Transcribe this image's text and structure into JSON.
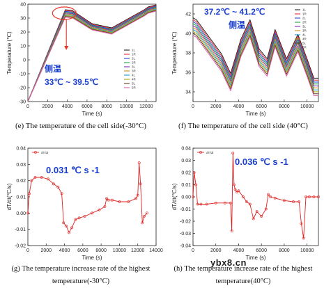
{
  "chart_data": [
    {
      "id": "e",
      "type": "line",
      "caption": "(e) The temperature of the cell side(-30°C)",
      "xlabel": "Time (s)",
      "ylabel": "Temperature (℃)",
      "xlim": [
        0,
        13000
      ],
      "ylim": [
        -30,
        40
      ],
      "xticks": [
        0,
        2000,
        4000,
        6000,
        8000,
        10000,
        12000
      ],
      "yticks": [
        -30,
        -20,
        -10,
        0,
        10,
        20,
        30,
        40
      ],
      "legend": [
        "1L",
        "1R",
        "2L",
        "2R",
        "3L",
        "3R",
        "4L",
        "4R",
        "5L",
        "5R"
      ],
      "legend_position": "right",
      "annotation_line1": "侧温",
      "annotation_line2": "33℃ ~ 39.5℃",
      "annotation_color": "#1a3fd1",
      "highlight_color": "#e8352a",
      "colors": [
        "#202020",
        "#e83030",
        "#2a3fd1",
        "#1aa04a",
        "#7a2ab0",
        "#d08a1a",
        "#1a9ad0",
        "#b0a010",
        "#604020",
        "#e060b0"
      ],
      "series": [
        {
          "name": "1L",
          "x": [
            0,
            3800,
            4500,
            6500,
            8500,
            11800,
            12200,
            13000
          ],
          "y": [
            -30,
            36,
            35.5,
            26,
            23,
            36,
            38,
            39.5
          ]
        },
        {
          "name": "1R",
          "x": [
            0,
            3800,
            4500,
            6500,
            8500,
            11800,
            12200,
            13000
          ],
          "y": [
            -30,
            35.4,
            35,
            25.5,
            22.5,
            35.5,
            37.5,
            39
          ]
        },
        {
          "name": "2L",
          "x": [
            0,
            3800,
            4500,
            6500,
            8500,
            11800,
            12200,
            13000
          ],
          "y": [
            -30,
            34.8,
            34.4,
            25,
            22,
            35,
            37,
            38.5
          ]
        },
        {
          "name": "2R",
          "x": [
            0,
            3800,
            4500,
            6500,
            8500,
            11800,
            12200,
            13000
          ],
          "y": [
            -30,
            34.2,
            33.8,
            24.5,
            21.5,
            34.5,
            36.5,
            38
          ]
        },
        {
          "name": "3L",
          "x": [
            0,
            3800,
            4500,
            6500,
            8500,
            11800,
            12200,
            13000
          ],
          "y": [
            -30,
            33.6,
            33.2,
            24,
            21,
            34,
            36,
            37.5
          ]
        },
        {
          "name": "3R",
          "x": [
            0,
            3800,
            4500,
            6500,
            8500,
            11800,
            12200,
            13000
          ],
          "y": [
            -30,
            33,
            32.6,
            23.5,
            20.5,
            33.5,
            35.5,
            37
          ]
        },
        {
          "name": "4L",
          "x": [
            0,
            3800,
            4500,
            6500,
            8500,
            11800,
            12200,
            13000
          ],
          "y": [
            -30,
            32.4,
            32,
            23,
            20,
            33,
            35,
            36.5
          ]
        },
        {
          "name": "4R",
          "x": [
            0,
            3800,
            4500,
            6500,
            8500,
            11800,
            12200,
            13000
          ],
          "y": [
            -30,
            31.8,
            31.4,
            22.5,
            19.5,
            32.5,
            34.5,
            36
          ]
        },
        {
          "name": "5L",
          "x": [
            0,
            3800,
            4500,
            6500,
            8500,
            11800,
            12200,
            13000
          ],
          "y": [
            -30,
            31.2,
            30.8,
            22,
            19,
            32,
            34,
            35.5
          ]
        },
        {
          "name": "5R",
          "x": [
            0,
            3800,
            4500,
            6500,
            8500,
            11800,
            12200,
            13000
          ],
          "y": [
            -30,
            30.6,
            30.2,
            21.5,
            18.5,
            31.5,
            33.5,
            35
          ]
        }
      ]
    },
    {
      "id": "f",
      "type": "line",
      "caption": "(f) The temperature of the cell side (40°C)",
      "xlabel": "Time (s)",
      "ylabel": "Temperature (℃)",
      "xlim": [
        0,
        11000
      ],
      "ylim": [
        33,
        43
      ],
      "xticks": [
        0,
        2000,
        4000,
        6000,
        8000,
        10000
      ],
      "yticks": [
        34,
        36,
        38,
        40,
        42
      ],
      "legend": [
        "1L",
        "1R",
        "2L",
        "2R",
        "3L",
        "3R",
        "4L",
        "4R",
        "5L",
        "5R"
      ],
      "legend_position": "top-right",
      "annotation_line1": "37.2℃ ~ 41.2℃",
      "annotation_line2": "侧温",
      "annotation_color": "#1a3fd1",
      "colors": [
        "#202020",
        "#e83030",
        "#2a3fd1",
        "#1aa04a",
        "#7a2ab0",
        "#d08a1a",
        "#1a9ad0",
        "#b0a010",
        "#604020",
        "#e060b0"
      ],
      "base_x": [
        0,
        300,
        2500,
        3300,
        4200,
        5000,
        5800,
        6500,
        7200,
        8200,
        9200,
        10000,
        10600,
        11000
      ],
      "base_y": [
        41.2,
        41.0,
        37.5,
        35.5,
        39.0,
        41.0,
        38.0,
        37.0,
        40.0,
        37.0,
        39.5,
        37.0,
        35.0,
        35.0
      ],
      "series": [
        {
          "name": "1L",
          "offset": 0.4
        },
        {
          "name": "1R",
          "offset": 0.2
        },
        {
          "name": "2L",
          "offset": 0.0
        },
        {
          "name": "2R",
          "offset": -0.2
        },
        {
          "name": "3L",
          "offset": -0.4
        },
        {
          "name": "3R",
          "offset": -0.6
        },
        {
          "name": "4L",
          "offset": -0.8
        },
        {
          "name": "4R",
          "offset": -1.0
        },
        {
          "name": "5L",
          "offset": -1.2
        },
        {
          "name": "5R",
          "offset": -1.4
        }
      ]
    },
    {
      "id": "g",
      "type": "line",
      "caption_line1": "(g) The temperature increase rate of the highest",
      "caption_line2": "temperature(-30°C)",
      "xlabel": "Time (s)",
      "ylabel": "dT/dt(℃/s)",
      "xlim": [
        0,
        14000
      ],
      "ylim": [
        -0.02,
        0.04
      ],
      "xticks": [
        0,
        2000,
        4000,
        6000,
        8000,
        10000,
        12000,
        14000
      ],
      "yticks": [
        -0.02,
        -0.01,
        0.0,
        0.01,
        0.02,
        0.03,
        0.04
      ],
      "ytick_labels": [
        "-0.02",
        "-0.01",
        "0.00",
        "0.01",
        "0.02",
        "0.03",
        "0.04"
      ],
      "legend": [
        "dT/dt"
      ],
      "annotation": "0.031 ℃ s -1",
      "annotation_color": "#1a3fd1",
      "series_color": "#e02020",
      "series": [
        {
          "name": "dT/dt",
          "x": [
            0,
            150,
            400,
            800,
            1500,
            2200,
            2800,
            3300,
            3700,
            3900,
            4200,
            4500,
            4800,
            5200,
            5600,
            6200,
            7000,
            7800,
            8400,
            8600,
            8800,
            9200,
            10000,
            11000,
            11800,
            12000,
            12150,
            12300,
            12500,
            12700,
            13000
          ],
          "y": [
            0.0,
            0.012,
            0.02,
            0.022,
            0.022,
            0.021,
            0.018,
            0.016,
            0.012,
            -0.006,
            -0.008,
            -0.012,
            -0.009,
            -0.004,
            -0.003,
            -0.002,
            0.0,
            0.002,
            0.004,
            0.009,
            0.008,
            0.008,
            0.007,
            0.007,
            0.009,
            0.011,
            0.031,
            0.018,
            -0.006,
            -0.002,
            0.0
          ]
        }
      ]
    },
    {
      "id": "h",
      "type": "line",
      "caption_line1": "(h) The temperature increase rate of the highest",
      "caption_line2": "temperature(40°C)",
      "xlabel": "Time (s)",
      "ylabel": "dT/dt(℃/s)",
      "xlim": [
        0,
        11000
      ],
      "ylim": [
        -0.04,
        0.04
      ],
      "xticks": [
        0,
        2000,
        4000,
        6000,
        8000,
        10000
      ],
      "yticks": [
        -0.04,
        -0.03,
        -0.02,
        -0.01,
        0.0,
        0.01,
        0.02,
        0.03,
        0.04
      ],
      "ytick_labels": [
        "-0.04",
        "-0.03",
        "-0.02",
        "-0.01",
        "0.00",
        "0.01",
        "0.02",
        "0.03",
        "0.04"
      ],
      "legend": [
        "dT/dt"
      ],
      "annotation": "0.036 ℃ s -1",
      "annotation_color": "#1a3fd1",
      "series_color": "#e02020",
      "series": [
        {
          "name": "dT/dt",
          "x": [
            0,
            100,
            250,
            400,
            700,
            1200,
            2000,
            2800,
            3300,
            3400,
            3500,
            3600,
            3700,
            3850,
            4000,
            4400,
            4700,
            5000,
            5300,
            5600,
            6000,
            6400,
            6600,
            6800,
            7200,
            8000,
            8800,
            9300,
            9500,
            9700,
            9900,
            10200,
            10600,
            11000
          ],
          "y": [
            0.0,
            0.02,
            0.01,
            -0.006,
            -0.006,
            -0.006,
            -0.005,
            -0.005,
            -0.005,
            -0.028,
            0.036,
            0.01,
            0.006,
            0.004,
            0.005,
            0.0,
            -0.004,
            -0.006,
            -0.018,
            -0.012,
            -0.016,
            -0.01,
            0.002,
            0.0,
            -0.001,
            -0.003,
            -0.004,
            -0.004,
            -0.022,
            -0.034,
            0.0,
            0.0,
            0.0,
            0.0
          ]
        }
      ]
    }
  ],
  "watermark": "ybx8.cn"
}
